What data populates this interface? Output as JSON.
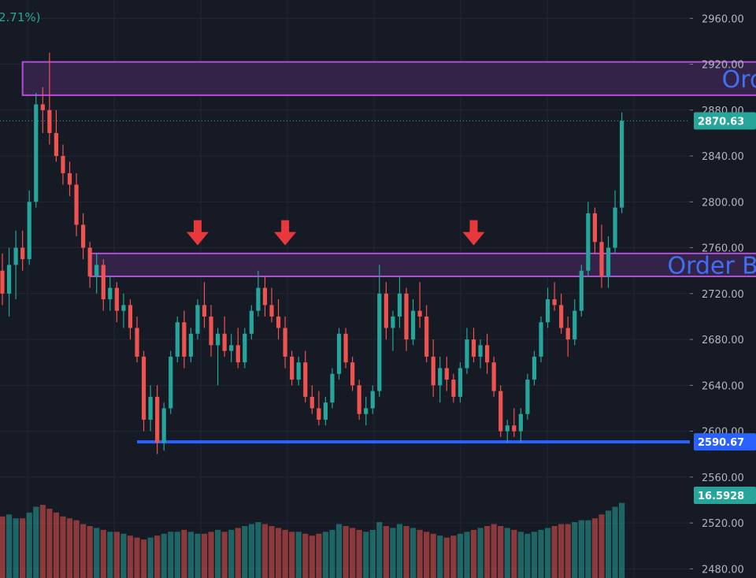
{
  "header": {
    "change_text": "2.71%)"
  },
  "colors": {
    "background": "#161a25",
    "grid": "#232734",
    "up": "#26a69a",
    "down": "#ef5350",
    "zone_border": "#b04fd8",
    "zone_fill": "#3a2650",
    "zone_text": "#3f6ff2",
    "support_line": "#2962ff",
    "last_price_badge": "#26a69a",
    "volume_badge": "#26a69a",
    "support_badge": "#2962ff",
    "arrow": "#e8383b"
  },
  "chart_data": {
    "type": "candlestick",
    "y_axis": {
      "position": "right",
      "ylim": [
        2472,
        2976
      ],
      "ticks": [
        2480,
        2520,
        2560,
        2600,
        2640,
        2680,
        2720,
        2760,
        2800,
        2840,
        2880,
        2920,
        2960
      ],
      "tick_labels": [
        "2480.00",
        "2520.00",
        "2560.00",
        "2600.00",
        "2640.00",
        "2680.00",
        "2720.00",
        "2760.00",
        "2800.00",
        "2840.00",
        "2880.00",
        "2920.00",
        "2960.00"
      ]
    },
    "grid": true,
    "last_price": {
      "value": 2870.63,
      "label": "2870.63"
    },
    "volume_value": {
      "value": 16.5928,
      "label": "16.5928"
    },
    "support": {
      "value": 2590.67,
      "label": "2590.67"
    },
    "order_blocks": [
      {
        "label": "Order Block",
        "top": 2922,
        "bottom": 2893,
        "start_index": 3,
        "end_index": 141
      },
      {
        "label": "Order Block",
        "top": 2755,
        "bottom": 2735,
        "start_index": 13,
        "end_index": 128
      }
    ],
    "arrows_at_index": [
      29,
      42,
      70,
      121
    ],
    "arrow_value": 2762,
    "candles": [
      [
        2740,
        2755,
        2710,
        2720
      ],
      [
        2720,
        2760,
        2700,
        2745
      ],
      [
        2745,
        2775,
        2715,
        2760
      ],
      [
        2760,
        2775,
        2740,
        2750
      ],
      [
        2750,
        2810,
        2745,
        2800
      ],
      [
        2800,
        2895,
        2795,
        2885
      ],
      [
        2885,
        2900,
        2860,
        2880
      ],
      [
        2880,
        2930,
        2850,
        2860
      ],
      [
        2860,
        2880,
        2835,
        2840
      ],
      [
        2840,
        2850,
        2815,
        2825
      ],
      [
        2825,
        2835,
        2805,
        2815
      ],
      [
        2815,
        2825,
        2770,
        2780
      ],
      [
        2780,
        2790,
        2750,
        2760
      ],
      [
        2760,
        2765,
        2725,
        2735
      ],
      [
        2735,
        2755,
        2720,
        2745
      ],
      [
        2745,
        2750,
        2705,
        2715
      ],
      [
        2715,
        2735,
        2705,
        2725
      ],
      [
        2725,
        2730,
        2695,
        2705
      ],
      [
        2705,
        2720,
        2690,
        2710
      ],
      [
        2710,
        2715,
        2680,
        2690
      ],
      [
        2690,
        2700,
        2660,
        2665
      ],
      [
        2665,
        2670,
        2600,
        2610
      ],
      [
        2610,
        2640,
        2600,
        2630
      ],
      [
        2630,
        2640,
        2580,
        2590
      ],
      [
        2590,
        2625,
        2583,
        2620
      ],
      [
        2620,
        2670,
        2615,
        2665
      ],
      [
        2665,
        2700,
        2660,
        2695
      ],
      [
        2695,
        2705,
        2655,
        2665
      ],
      [
        2665,
        2690,
        2660,
        2685
      ],
      [
        2685,
        2715,
        2680,
        2710
      ],
      [
        2710,
        2730,
        2690,
        2700
      ],
      [
        2700,
        2710,
        2665,
        2675
      ],
      [
        2675,
        2690,
        2640,
        2685
      ],
      [
        2685,
        2700,
        2665,
        2670
      ],
      [
        2670,
        2685,
        2660,
        2675
      ],
      [
        2675,
        2690,
        2655,
        2660
      ],
      [
        2660,
        2690,
        2655,
        2685
      ],
      [
        2685,
        2710,
        2680,
        2705
      ],
      [
        2705,
        2740,
        2700,
        2725
      ],
      [
        2725,
        2735,
        2700,
        2710
      ],
      [
        2710,
        2725,
        2695,
        2700
      ],
      [
        2700,
        2715,
        2680,
        2690
      ],
      [
        2690,
        2700,
        2655,
        2665
      ],
      [
        2665,
        2670,
        2640,
        2645
      ],
      [
        2645,
        2665,
        2640,
        2660
      ],
      [
        2660,
        2670,
        2625,
        2630
      ],
      [
        2630,
        2640,
        2615,
        2620
      ],
      [
        2620,
        2635,
        2605,
        2610
      ],
      [
        2610,
        2630,
        2605,
        2625
      ],
      [
        2625,
        2655,
        2620,
        2650
      ],
      [
        2650,
        2690,
        2645,
        2685
      ],
      [
        2685,
        2690,
        2655,
        2660
      ],
      [
        2660,
        2665,
        2635,
        2640
      ],
      [
        2640,
        2645,
        2610,
        2615
      ],
      [
        2615,
        2630,
        2605,
        2620
      ],
      [
        2620,
        2640,
        2615,
        2635
      ],
      [
        2635,
        2745,
        2630,
        2720
      ],
      [
        2720,
        2730,
        2680,
        2690
      ],
      [
        2690,
        2705,
        2670,
        2700
      ],
      [
        2700,
        2735,
        2690,
        2720
      ],
      [
        2720,
        2725,
        2670,
        2680
      ],
      [
        2680,
        2715,
        2675,
        2705
      ],
      [
        2705,
        2730,
        2690,
        2700
      ],
      [
        2700,
        2710,
        2660,
        2665
      ],
      [
        2665,
        2680,
        2630,
        2640
      ],
      [
        2640,
        2665,
        2625,
        2655
      ],
      [
        2655,
        2665,
        2635,
        2645
      ],
      [
        2645,
        2650,
        2625,
        2630
      ],
      [
        2630,
        2660,
        2625,
        2655
      ],
      [
        2655,
        2690,
        2650,
        2680
      ],
      [
        2680,
        2690,
        2660,
        2665
      ],
      [
        2665,
        2680,
        2655,
        2675
      ],
      [
        2675,
        2685,
        2650,
        2660
      ],
      [
        2660,
        2665,
        2630,
        2635
      ],
      [
        2635,
        2640,
        2595,
        2600
      ],
      [
        2600,
        2610,
        2590,
        2605
      ],
      [
        2605,
        2620,
        2595,
        2600
      ],
      [
        2600,
        2620,
        2590,
        2615
      ],
      [
        2615,
        2650,
        2610,
        2645
      ],
      [
        2645,
        2670,
        2640,
        2665
      ],
      [
        2665,
        2700,
        2660,
        2695
      ],
      [
        2695,
        2725,
        2690,
        2715
      ],
      [
        2715,
        2730,
        2705,
        2710
      ],
      [
        2710,
        2720,
        2685,
        2690
      ],
      [
        2690,
        2700,
        2665,
        2680
      ],
      [
        2680,
        2715,
        2675,
        2705
      ],
      [
        2705,
        2745,
        2700,
        2740
      ],
      [
        2740,
        2800,
        2735,
        2790
      ],
      [
        2790,
        2795,
        2755,
        2765
      ],
      [
        2765,
        2780,
        2725,
        2735
      ],
      [
        2735,
        2770,
        2725,
        2760
      ],
      [
        2760,
        2810,
        2755,
        2795
      ],
      [
        2795,
        2878,
        2790,
        2870.63
      ]
    ],
    "volumes": [
      32,
      33,
      31,
      31,
      34,
      37,
      38,
      36,
      34,
      32,
      31,
      30,
      28,
      27,
      26,
      25,
      24,
      24,
      23,
      22,
      21,
      20,
      21,
      22,
      23,
      24,
      24,
      25,
      24,
      23,
      23,
      24,
      25,
      24,
      25,
      26,
      27,
      28,
      29,
      28,
      27,
      26,
      25,
      24,
      24,
      23,
      22,
      23,
      24,
      25,
      28,
      27,
      26,
      25,
      24,
      25,
      29,
      27,
      26,
      28,
      27,
      26,
      25,
      24,
      23,
      22,
      21,
      22,
      23,
      24,
      25,
      26,
      27,
      28,
      27,
      26,
      25,
      24,
      23,
      24,
      25,
      26,
      27,
      28,
      28,
      29,
      30,
      30,
      31,
      33,
      35,
      37,
      39
    ],
    "volume_max": 45
  }
}
